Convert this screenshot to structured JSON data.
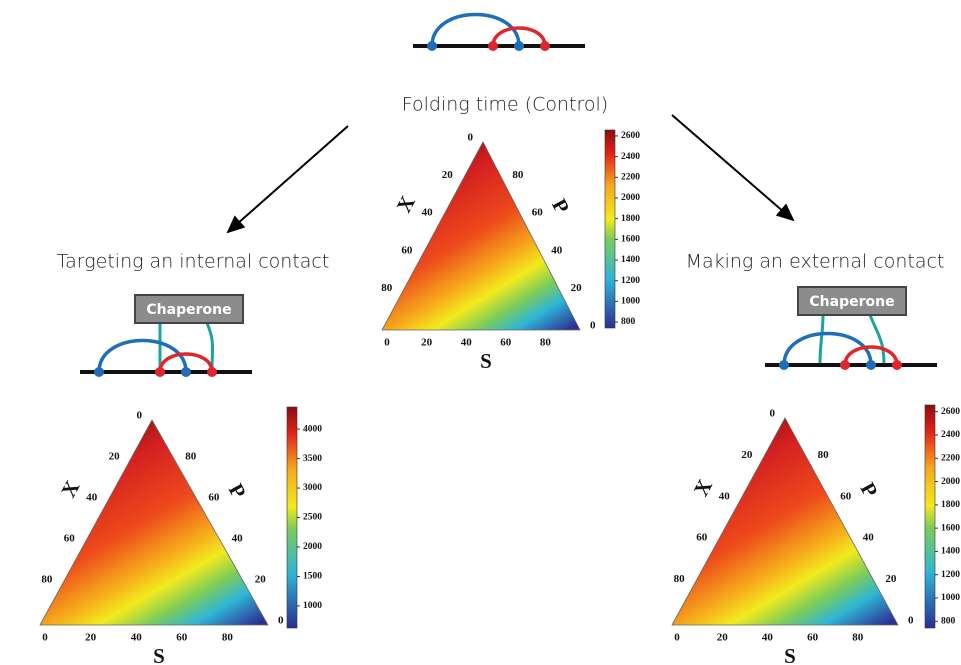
{
  "panels": [
    {
      "title": "Folding time (Control)",
      "x_label": "X",
      "p_label": "P",
      "s_label": "S",
      "x_ticks": [
        0,
        20,
        40,
        60,
        80
      ],
      "p_ticks": [
        80,
        60,
        40,
        20,
        0
      ],
      "s_ticks": [
        0,
        20,
        40,
        60,
        80
      ],
      "colorbar_ticks": [
        800,
        1000,
        1200,
        1400,
        1600,
        1800,
        2000,
        2200,
        2400,
        2600
      ]
    },
    {
      "title": "Targeting an internal contact",
      "chaperone": "Chaperone",
      "x_label": "X",
      "p_label": "P",
      "s_label": "S",
      "x_ticks": [
        0,
        20,
        40,
        60,
        80
      ],
      "p_ticks": [
        80,
        60,
        40,
        20,
        0
      ],
      "s_ticks": [
        0,
        20,
        40,
        60,
        80
      ],
      "colorbar_ticks": [
        1000,
        1500,
        2000,
        2500,
        3000,
        3500,
        4000
      ]
    },
    {
      "title": "Making an external contact",
      "chaperone": "Chaperone",
      "x_label": "X",
      "p_label": "P",
      "s_label": "S",
      "x_ticks": [
        0,
        20,
        40,
        60,
        80
      ],
      "p_ticks": [
        80,
        60,
        40,
        20,
        0
      ],
      "s_ticks": [
        0,
        20,
        40,
        60,
        80
      ],
      "colorbar_ticks": [
        800,
        1000,
        1200,
        1400,
        1600,
        1800,
        2000,
        2200,
        2400,
        2600
      ]
    }
  ]
}
